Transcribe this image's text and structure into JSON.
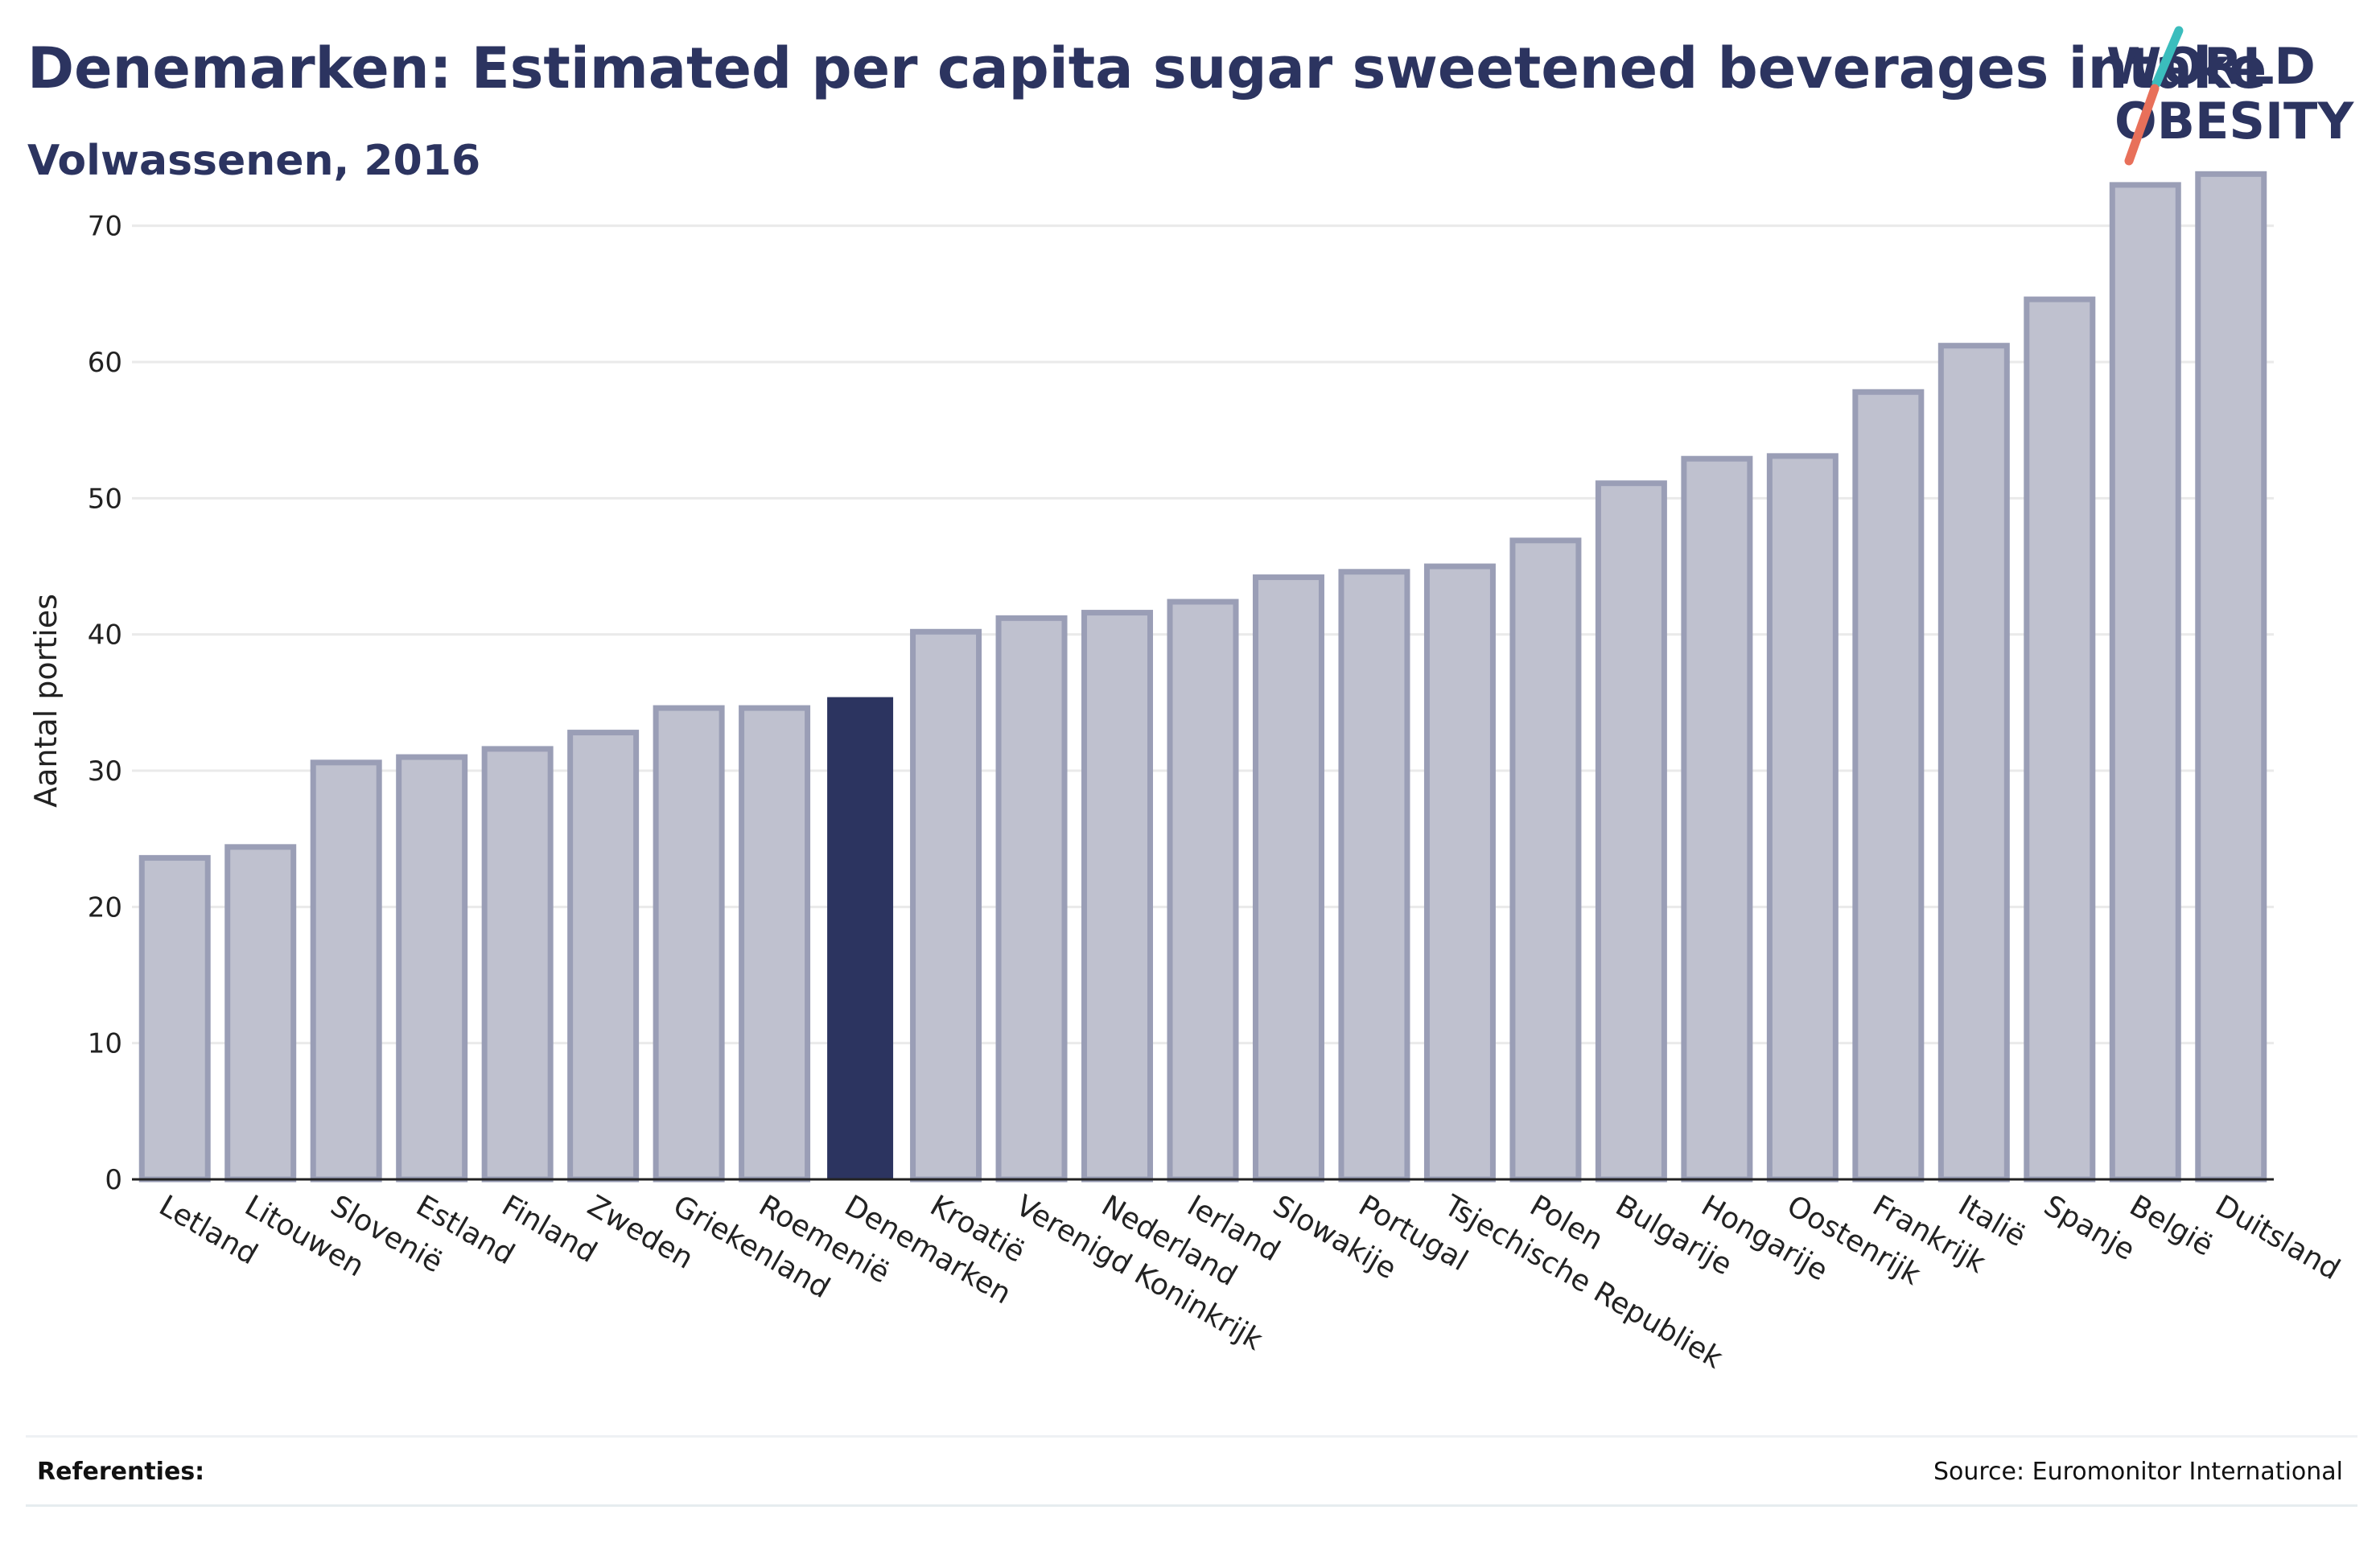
{
  "header": {
    "title": "Denemarken: Estimated per capita sugar sweetened beverages intake",
    "subtitle": "Volwassenen, 2016"
  },
  "logo": {
    "line1": "WORLD",
    "line2": "OBESITY",
    "accent_colors": [
      "#3bbdbd",
      "#e8705a"
    ],
    "text_color": "#2c3460"
  },
  "chart_data": {
    "type": "bar",
    "title": "Denemarken: Estimated per capita sugar sweetened beverages intake",
    "subtitle": "Volwassenen, 2016",
    "xlabel": "",
    "ylabel": "Aantal porties",
    "ylim": [
      0,
      75
    ],
    "yticks": [
      0,
      10,
      20,
      30,
      40,
      50,
      60,
      70
    ],
    "grid": true,
    "highlight": "Denemarken",
    "colors": {
      "bar_fill": "#bfc1cf",
      "bar_stroke": "#9a9eb6",
      "highlight_fill": "#2c3460",
      "grid": "#eaeaea",
      "axis": "#222222"
    },
    "categories": [
      "Letland",
      "Litouwen",
      "Slovenië",
      "Estland",
      "Finland",
      "Zweden",
      "Griekenland",
      "Roemenië",
      "Denemarken",
      "Kroatië",
      "Verenigd Koninkrijk",
      "Nederland",
      "Ierland",
      "Slowakije",
      "Portugal",
      "Tsjechische Republiek",
      "Polen",
      "Bulgarije",
      "Hongarije",
      "Oostenrijk",
      "Frankrijk",
      "Italië",
      "Spanje",
      "België",
      "Duitsland"
    ],
    "values": [
      23.6,
      24.4,
      30.6,
      31.0,
      31.6,
      32.8,
      34.6,
      34.6,
      35.4,
      40.2,
      41.2,
      41.6,
      42.4,
      44.2,
      44.6,
      45.0,
      46.9,
      51.1,
      52.9,
      53.1,
      57.8,
      61.2,
      64.6,
      73.0,
      73.8
    ]
  },
  "footer": {
    "references_label": "Referenties:",
    "source": "Source: Euromonitor International"
  }
}
